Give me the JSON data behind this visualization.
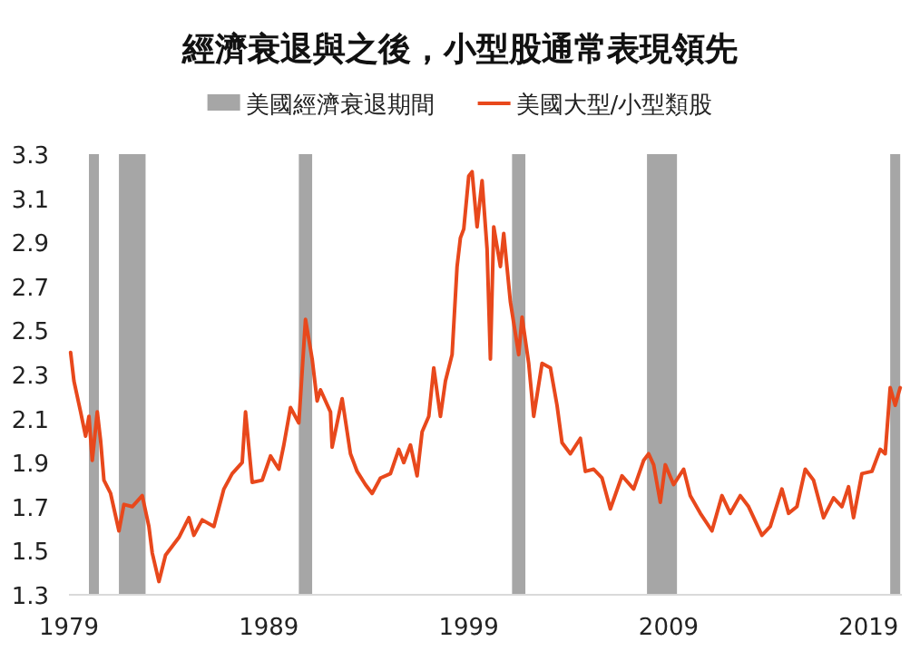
{
  "chart_data": {
    "type": "line",
    "title": "經濟衰退與之後，小型股通常表現領先",
    "x": [
      "1979-02",
      "1979-04",
      "1979-08",
      "1979-11",
      "1980-01",
      "1980-03",
      "1980-06",
      "1980-08",
      "1980-10",
      "1981-02",
      "1981-07",
      "1981-10",
      "1982-03",
      "1982-09",
      "1983-01",
      "1983-03",
      "1983-07",
      "1983-11",
      "1984-07",
      "1985-01",
      "1985-04",
      "1985-09",
      "1986-04",
      "1986-10",
      "1987-03",
      "1987-09",
      "1987-11",
      "1988-03",
      "1988-09",
      "1989-02",
      "1989-07",
      "1989-10",
      "1990-02",
      "1990-07",
      "1990-11",
      "1991-03",
      "1991-06",
      "1991-08",
      "1992-02",
      "1992-03",
      "1992-09",
      "1993-02",
      "1993-06",
      "1993-11",
      "1994-03",
      "1994-08",
      "1995-02",
      "1995-07",
      "1995-10",
      "1996-02",
      "1996-06",
      "1996-09",
      "1997-01",
      "1997-04",
      "1997-08",
      "1997-11",
      "1998-03",
      "1998-06",
      "1998-08",
      "1998-10",
      "1999-01",
      "1999-03",
      "1999-06",
      "1999-09",
      "1999-12",
      "2000-02",
      "2000-04",
      "2000-08",
      "2000-10",
      "2001-02",
      "2001-07",
      "2001-09",
      "2002-01",
      "2002-04",
      "2002-09",
      "2003-02",
      "2003-06",
      "2003-09",
      "2004-02",
      "2004-08",
      "2004-11",
      "2005-04",
      "2005-09",
      "2006-02",
      "2006-09",
      "2007-04",
      "2007-10",
      "2008-01",
      "2008-04",
      "2008-08",
      "2008-11",
      "2009-04",
      "2009-10",
      "2010-02",
      "2010-08",
      "2011-03",
      "2011-09",
      "2012-02",
      "2012-08",
      "2013-01",
      "2013-09",
      "2014-02",
      "2014-09",
      "2015-01",
      "2015-06",
      "2015-11",
      "2016-04",
      "2016-10",
      "2017-04",
      "2017-09",
      "2018-01",
      "2018-04",
      "2018-09",
      "2019-03",
      "2019-08",
      "2019-11",
      "2020-02",
      "2020-05",
      "2020-08"
    ],
    "series": [
      {
        "name": "美國大型/小型類股",
        "color": "#e8481c",
        "values": [
          2.4,
          2.27,
          2.13,
          2.02,
          2.11,
          1.91,
          2.13,
          2.0,
          1.82,
          1.76,
          1.59,
          1.71,
          1.7,
          1.75,
          1.61,
          1.49,
          1.36,
          1.48,
          1.56,
          1.65,
          1.57,
          1.64,
          1.61,
          1.78,
          1.85,
          1.9,
          2.13,
          1.81,
          1.82,
          1.93,
          1.87,
          1.98,
          2.15,
          2.08,
          2.55,
          2.37,
          2.18,
          2.23,
          2.13,
          1.97,
          2.19,
          1.94,
          1.86,
          1.8,
          1.76,
          1.83,
          1.85,
          1.96,
          1.9,
          1.98,
          1.84,
          2.04,
          2.11,
          2.33,
          2.11,
          2.27,
          2.39,
          2.79,
          2.92,
          2.96,
          3.2,
          3.22,
          2.97,
          3.18,
          2.87,
          2.37,
          2.97,
          2.79,
          2.94,
          2.63,
          2.39,
          2.56,
          2.35,
          2.11,
          2.35,
          2.33,
          2.16,
          1.99,
          1.94,
          2.01,
          1.86,
          1.87,
          1.83,
          1.69,
          1.84,
          1.78,
          1.91,
          1.94,
          1.89,
          1.72,
          1.89,
          1.8,
          1.87,
          1.75,
          1.67,
          1.59,
          1.75,
          1.67,
          1.75,
          1.7,
          1.57,
          1.61,
          1.78,
          1.67,
          1.7,
          1.87,
          1.82,
          1.65,
          1.74,
          1.7,
          1.79,
          1.65,
          1.85,
          1.86,
          1.96,
          1.94,
          2.24,
          2.16,
          2.24
        ]
      }
    ],
    "bands": [
      {
        "axis": "x",
        "from": "1980-01",
        "to": "1980-07",
        "label": "美國經濟衰退期間",
        "color": "#a6a6a6"
      },
      {
        "axis": "x",
        "from": "1981-07",
        "to": "1982-11",
        "color": "#a6a6a6"
      },
      {
        "axis": "x",
        "from": "1990-07",
        "to": "1991-03",
        "color": "#a6a6a6"
      },
      {
        "axis": "x",
        "from": "2001-03",
        "to": "2001-11",
        "color": "#a6a6a6"
      },
      {
        "axis": "x",
        "from": "2007-12",
        "to": "2009-06",
        "color": "#a6a6a6"
      },
      {
        "axis": "x",
        "from": "2020-02",
        "to": "2020-08",
        "color": "#a6a6a6"
      }
    ],
    "xlim": [
      "1979-01",
      "2020-09"
    ],
    "xticks": [
      "1979",
      "1989",
      "1999",
      "2009",
      "2019"
    ],
    "ylim": [
      1.3,
      3.3
    ],
    "yticks": [
      1.3,
      1.5,
      1.7,
      1.9,
      2.1,
      2.3,
      2.5,
      2.7,
      2.9,
      3.1,
      3.3
    ],
    "grid": false,
    "legend": "top"
  }
}
